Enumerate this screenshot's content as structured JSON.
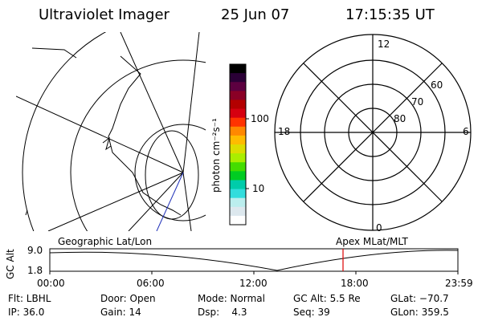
{
  "header": {
    "instrument": "Ultraviolet Imager",
    "date": "25 Jun 07",
    "time": "17:15:35 UT"
  },
  "colorbar": {
    "label": "photon cm⁻²s⁻¹",
    "ticks": [
      "100",
      "10"
    ],
    "colors": [
      "#000000",
      "#2a0036",
      "#5c0040",
      "#8a0026",
      "#b30000",
      "#d60010",
      "#ff3300",
      "#ff8800",
      "#ffbb00",
      "#dddd00",
      "#aaee00",
      "#44dd00",
      "#00cc22",
      "#00ccaa",
      "#33dddd",
      "#bbeeee",
      "#dde8ee",
      "#ffffff"
    ]
  },
  "polar_plot": {
    "mlt_labels": {
      "top": "12",
      "left": "18",
      "right": "6",
      "bottom": "0"
    },
    "lat_labels": [
      "60",
      "70",
      "80"
    ]
  },
  "timeline": {
    "left_title": "Geographic Lat/Lon",
    "right_title": "Apex MLat/MLT",
    "y_label": "GC Alt",
    "y_ticks": [
      "9.0",
      "1.8"
    ],
    "x_ticks": [
      "00:00",
      "06:00",
      "12:00",
      "18:00",
      "23:59"
    ],
    "marker_color": "#dd0000"
  },
  "footer": {
    "row1": [
      {
        "label": "Flt: LBHL"
      },
      {
        "label": "Door: Open"
      },
      {
        "label": "Mode: Normal"
      },
      {
        "label": "GC Alt: 5.5 Re"
      },
      {
        "label": "GLat: −70.7"
      }
    ],
    "row2": [
      {
        "label": "IP: 36.0"
      },
      {
        "label": "Gain: 14"
      },
      {
        "label": "Dsp:    4.3"
      },
      {
        "label": "Seq: 39"
      },
      {
        "label": "GLon: 359.5"
      }
    ]
  }
}
